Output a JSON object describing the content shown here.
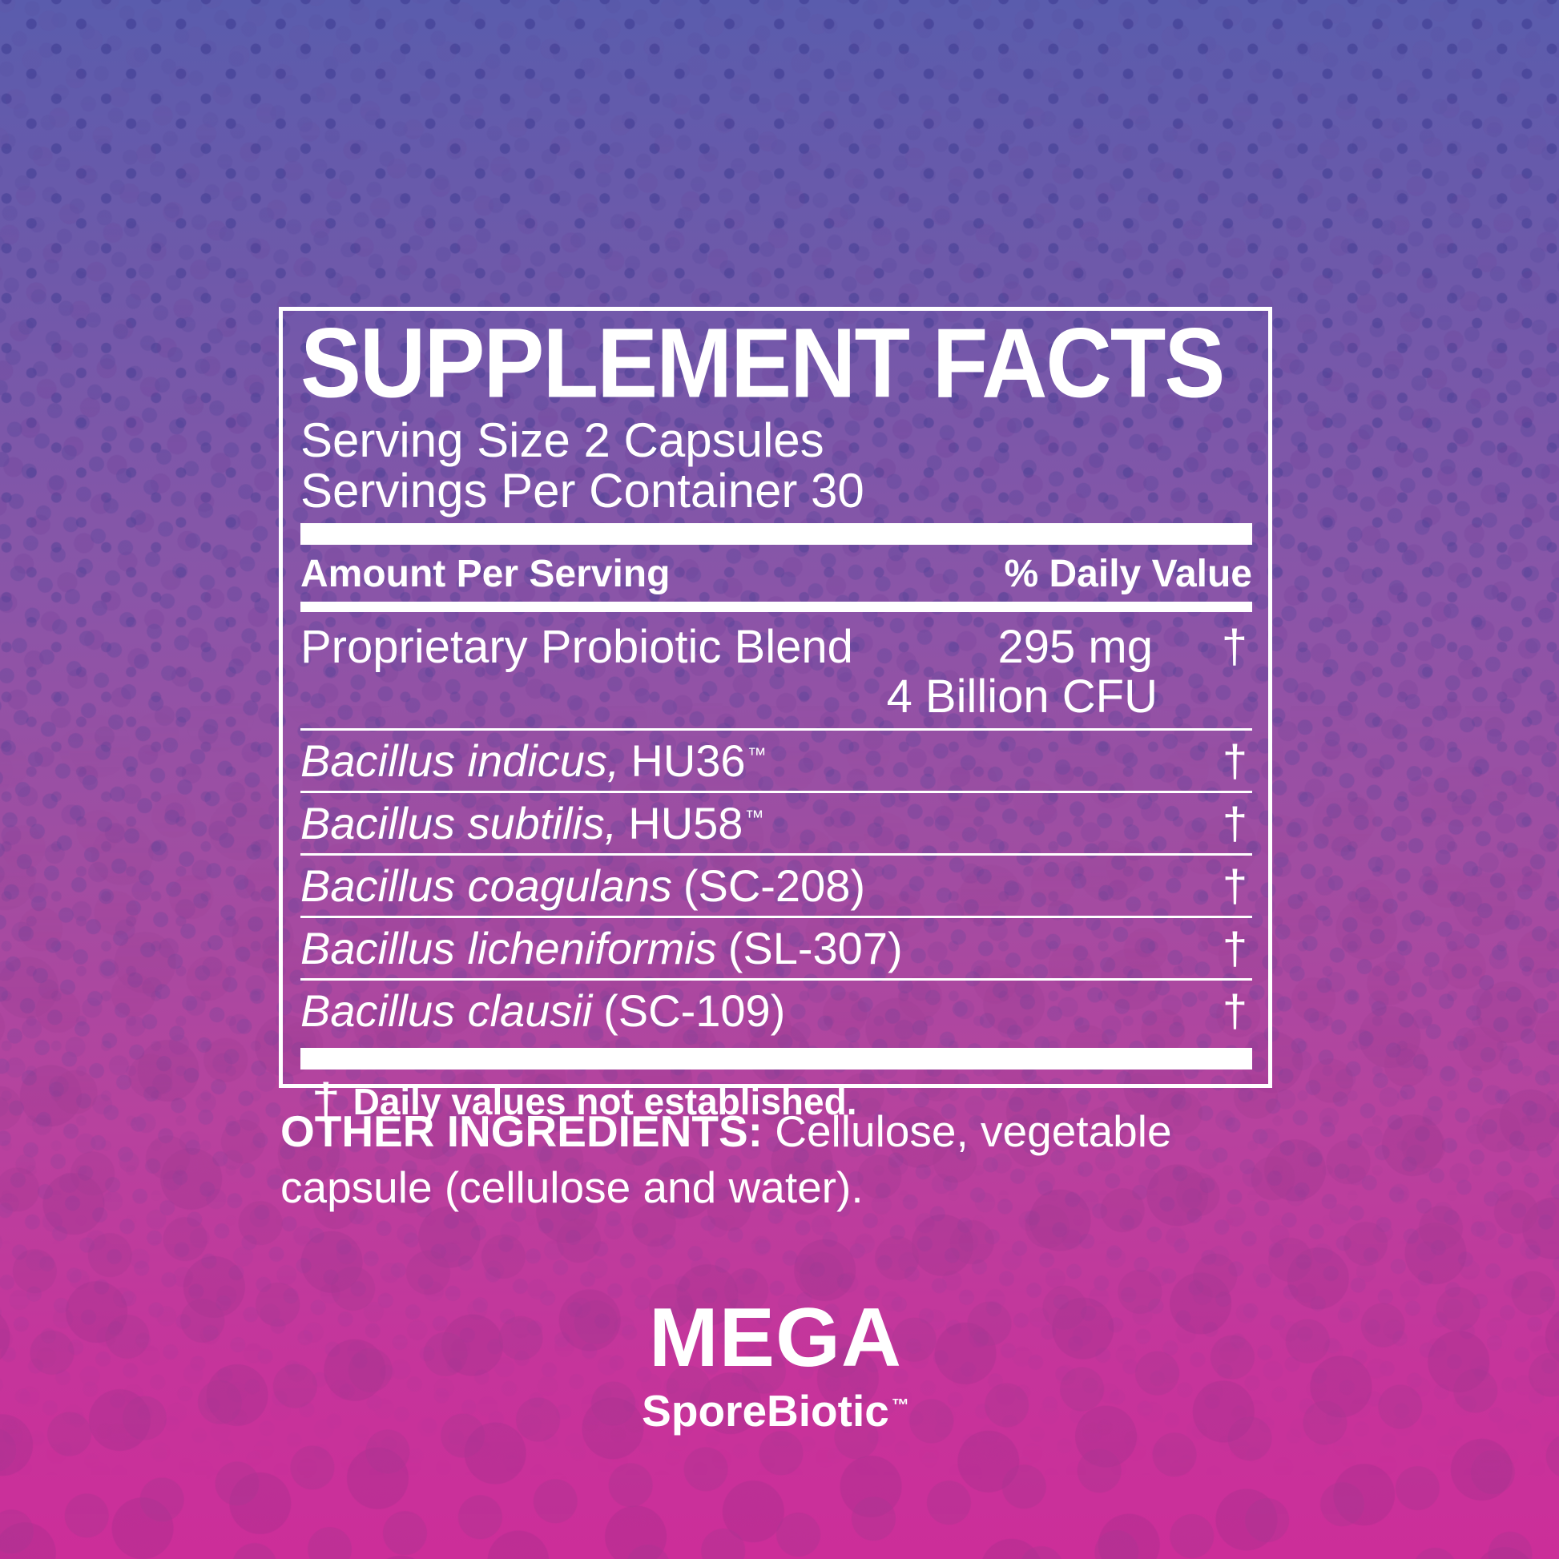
{
  "panel": {
    "title": "SUPPLEMENT FACTS",
    "serving_size": "Serving Size 2 Capsules",
    "servings_per_container": "Servings Per Container 30",
    "columns": {
      "left": "Amount Per Serving",
      "right": "% Daily Value"
    },
    "blend": {
      "name": "Proprietary Probiotic Blend",
      "amount": "295 mg",
      "amount2": "4 Billion CFU",
      "dv": "†"
    },
    "rows": [
      {
        "species": "Bacillus indicus,",
        "strain": "HU36",
        "tm": "™",
        "dv": "†"
      },
      {
        "species": "Bacillus subtilis,",
        "strain": "HU58",
        "tm": "™",
        "dv": "†"
      },
      {
        "species": "Bacillus coagulans",
        "strain": "(SC-208)",
        "tm": "",
        "dv": "†"
      },
      {
        "species": "Bacillus licheniformis",
        "strain": "(SL-307)",
        "tm": "",
        "dv": "†"
      },
      {
        "species": "Bacillus clausii",
        "strain": "(SC-109)",
        "tm": "",
        "dv": "†"
      }
    ],
    "footnote": {
      "symbol": "†",
      "text": "Daily values not established."
    }
  },
  "other_ingredients": {
    "label": "OTHER INGREDIENTS:",
    "text": " Cellulose, vegetable capsule (cellulose and water)."
  },
  "logo": {
    "line1": "MEGA",
    "line2": "SporeBiotic",
    "tm": "™"
  },
  "colors": {
    "text": "#ffffff",
    "background_top": "#5a5cad",
    "background_middle": "#a04da2",
    "background_bottom": "#cc2e99"
  }
}
